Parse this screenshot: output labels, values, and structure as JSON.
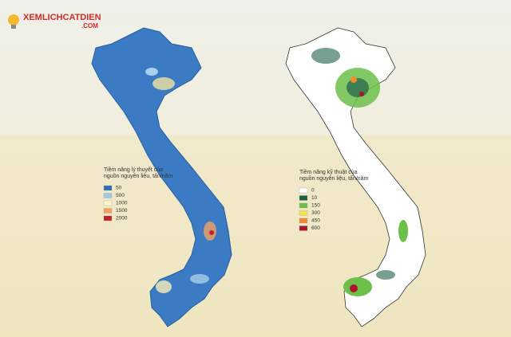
{
  "logo": {
    "name": "XEMLICHCATDIEN",
    "domain": ".COM"
  },
  "legends": [
    {
      "title": "Tiềm năng lý thuyết của nguồn nguyên liệu, tấn/năm",
      "items": [
        {
          "label": "50",
          "color": "#2f6db5"
        },
        {
          "label": "500",
          "color": "#9ecae8"
        },
        {
          "label": "1000",
          "color": "#fdf7c8"
        },
        {
          "label": "1500",
          "color": "#f4a261"
        },
        {
          "label": "2000",
          "color": "#c81d25"
        }
      ]
    },
    {
      "title": "Tiềm năng kỹ thuật của nguồn nguyên liệu, tấn/năm",
      "items": [
        {
          "label": "0",
          "color": "#ffffff"
        },
        {
          "label": "10",
          "color": "#1f5f4a"
        },
        {
          "label": "150",
          "color": "#6cc04a"
        },
        {
          "label": "300",
          "color": "#f2e34c"
        },
        {
          "label": "450",
          "color": "#f08c2e"
        },
        {
          "label": "600",
          "color": "#b0122b"
        }
      ]
    }
  ]
}
